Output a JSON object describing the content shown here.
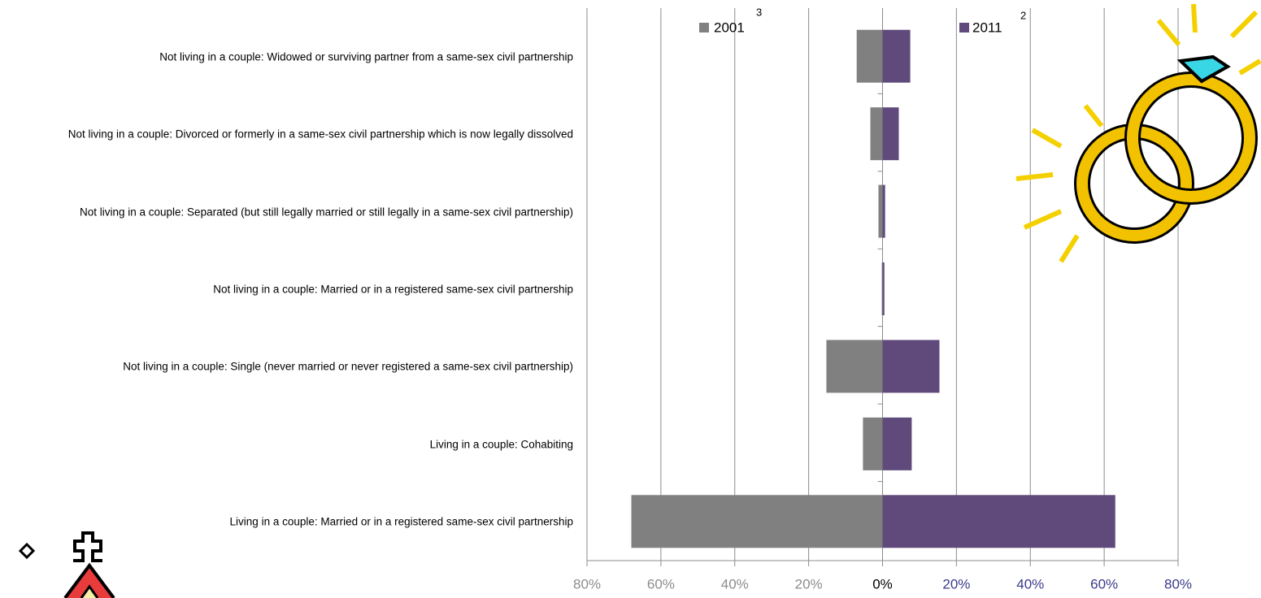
{
  "chart_data": {
    "type": "diverging-bar",
    "categories": [
      "Not living in a couple: Widowed or surviving partner from a same-sex civil partnership",
      "Not living in a couple: Divorced or formerly in a same-sex civil partnership which is now legally dissolved",
      "Not living in a couple: Separated (but still legally married or still legally in a same-sex civil partnership)",
      "Not living in a couple: Married or in a registered same-sex civil partnership",
      "Not living in a couple: Single (never married or never registered a same-sex civil partnership)",
      "Living in a couple: Cohabiting",
      "Living in a couple: Married or in a registered same-sex civil partnership"
    ],
    "series": [
      {
        "name": "2001",
        "footnote": "3",
        "color": "#808080",
        "values": [
          -7,
          -3.3,
          -1.1,
          -0.2,
          -15.2,
          -5.3,
          -68
        ]
      },
      {
        "name": "2011",
        "footnote": "2",
        "color": "#604a7b",
        "values": [
          7.5,
          4.4,
          0.7,
          0.5,
          15.4,
          7.9,
          63
        ]
      }
    ],
    "xlim": [
      -80,
      80
    ],
    "xticks": [
      {
        "value": -80,
        "label": "80%"
      },
      {
        "value": -60,
        "label": "60%"
      },
      {
        "value": -40,
        "label": "40%"
      },
      {
        "value": -20,
        "label": "20%"
      },
      {
        "value": 0,
        "label": "0%"
      },
      {
        "value": 20,
        "label": "20%"
      },
      {
        "value": 40,
        "label": "40%"
      },
      {
        "value": 60,
        "label": "60%"
      },
      {
        "value": 80,
        "label": "80%"
      }
    ],
    "xtick_label_colors": [
      "#8c8c8c",
      "#8c8c8c",
      "#8c8c8c",
      "#8c8c8c",
      "#000000",
      "#3a3a8c",
      "#3a3a8c",
      "#3a3a8c",
      "#3a3a8c"
    ],
    "grid": true
  }
}
